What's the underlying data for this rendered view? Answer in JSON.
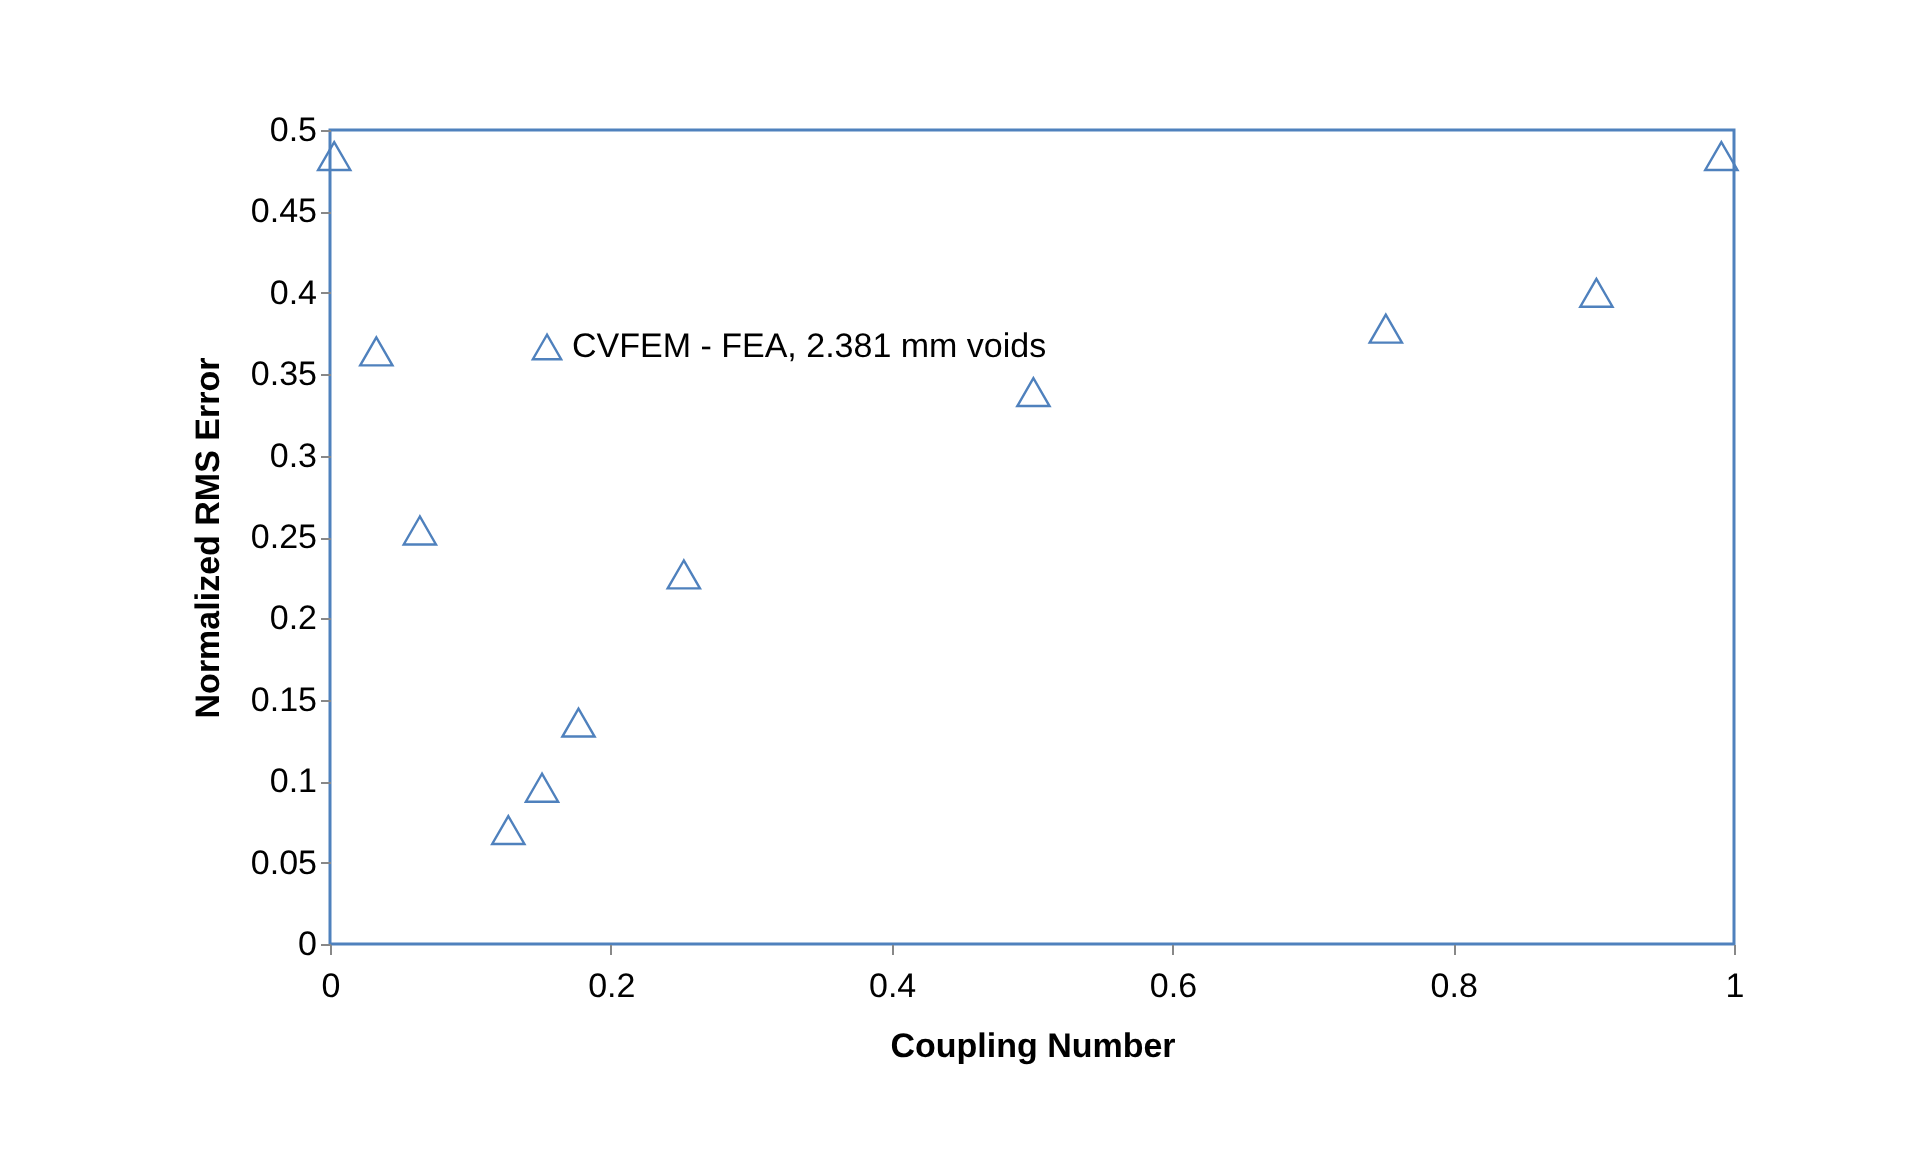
{
  "chart_data": {
    "type": "scatter",
    "xlabel": "Coupling Number",
    "ylabel": "Normalized RMS Error",
    "x": [
      0.003,
      0.033,
      0.064,
      0.127,
      0.151,
      0.177,
      0.252,
      0.501,
      0.752,
      0.902,
      0.991
    ],
    "series": [
      {
        "name": "CVFEM - FEA, 2.381 mm voids",
        "color": "#4f81bd",
        "values": [
          0.484,
          0.364,
          0.254,
          0.07,
          0.096,
          0.136,
          0.227,
          0.339,
          0.378,
          0.4,
          0.484
        ]
      }
    ],
    "xlim": [
      0,
      1
    ],
    "xticks": [
      0,
      0.2,
      0.4,
      0.6,
      0.8,
      1
    ],
    "ylim": [
      0,
      0.5
    ],
    "yticks": [
      0,
      0.05,
      0.1,
      0.15,
      0.2,
      0.25,
      0.3,
      0.35,
      0.4,
      0.45,
      0.5
    ],
    "marker": "triangle",
    "legend": "top left",
    "grid": false
  }
}
